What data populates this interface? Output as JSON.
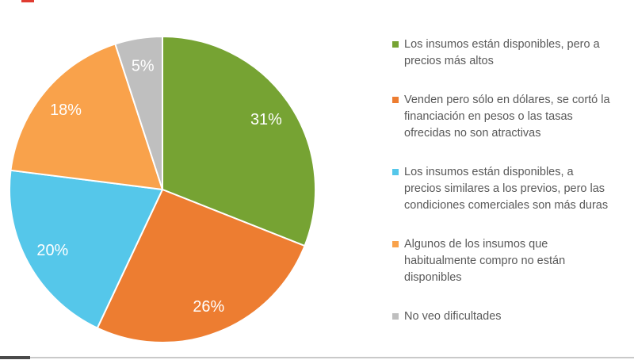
{
  "chart_data": {
    "type": "pie",
    "title": "",
    "start_angle_deg": 0,
    "direction": "clockwise",
    "legend_position": "right",
    "value_label_color": "#FFFFFF",
    "legend_text_color": "#595959",
    "slices": [
      {
        "label": "Los insumos están disponibles, pero a precios más altos",
        "value": 31,
        "value_label": "31%",
        "color": "#76A333"
      },
      {
        "label": "Venden pero sólo en dólares, se cortó la financiación en pesos o las tasas ofrecidas no son atractivas",
        "value": 26,
        "value_label": "26%",
        "color": "#ED7D31"
      },
      {
        "label": "Los insumos están disponibles, a precios similares a los previos, pero las condiciones comerciales son más duras",
        "value": 20,
        "value_label": "20%",
        "color": "#55C7EA"
      },
      {
        "label": "Algunos de los insumos que habitualmente compro no están disponibles",
        "value": 18,
        "value_label": "18%",
        "color": "#F9A24B"
      },
      {
        "label": "No veo dificultades",
        "value": 5,
        "value_label": "5%",
        "color": "#BFBFBF"
      }
    ]
  }
}
